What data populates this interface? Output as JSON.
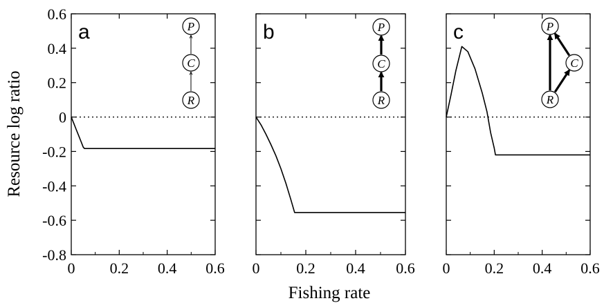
{
  "figure": {
    "xlabel": "Fishing rate",
    "ylabel": "Resource log ratio"
  },
  "chart_data": [
    {
      "type": "line",
      "panel": "a",
      "xlim": [
        0,
        0.6
      ],
      "ylim": [
        -0.8,
        0.6
      ],
      "xticks": [
        "0",
        "0.2",
        "0.4",
        "0.6"
      ],
      "yticks": [
        "0.6",
        "0.4",
        "0.2",
        "0",
        "-0.2",
        "-0.4",
        "-0.6",
        "-0.8"
      ],
      "reference_line": {
        "y": 0,
        "style": "dotted"
      },
      "series": [
        {
          "x": [
            0,
            0.01,
            0.02,
            0.03,
            0.04,
            0.05,
            0.055,
            0.1,
            0.2,
            0.3,
            0.4,
            0.5,
            0.6
          ],
          "y": [
            0,
            -0.035,
            -0.07,
            -0.105,
            -0.14,
            -0.175,
            -0.183,
            -0.183,
            -0.183,
            -0.183,
            -0.183,
            -0.183,
            -0.183
          ]
        }
      ],
      "diagram": {
        "nodes": [
          "P",
          "C",
          "R"
        ],
        "links": [
          {
            "from": "R",
            "to": "C",
            "weight": "thin"
          },
          {
            "from": "C",
            "to": "P",
            "weight": "thin"
          }
        ]
      }
    },
    {
      "type": "line",
      "panel": "b",
      "xlim": [
        0,
        0.6
      ],
      "ylim": [
        -0.8,
        0.6
      ],
      "xticks": [
        "0",
        "0.2",
        "0.4",
        "0.6"
      ],
      "reference_line": {
        "y": 0,
        "style": "dotted"
      },
      "series": [
        {
          "x": [
            0,
            0.02,
            0.04,
            0.06,
            0.08,
            0.1,
            0.12,
            0.14,
            0.155,
            0.2,
            0.3,
            0.4,
            0.5,
            0.6
          ],
          "y": [
            0,
            -0.045,
            -0.1,
            -0.16,
            -0.225,
            -0.3,
            -0.385,
            -0.48,
            -0.555,
            -0.555,
            -0.555,
            -0.555,
            -0.555,
            -0.555
          ]
        }
      ],
      "diagram": {
        "nodes": [
          "P",
          "C",
          "R"
        ],
        "links": [
          {
            "from": "R",
            "to": "C",
            "weight": "thick"
          },
          {
            "from": "C",
            "to": "P",
            "weight": "thick"
          }
        ]
      }
    },
    {
      "type": "line",
      "panel": "c",
      "xlim": [
        0,
        0.6
      ],
      "ylim": [
        -0.8,
        0.6
      ],
      "xticks": [
        "0",
        "0.2",
        "0.4",
        "0.6"
      ],
      "reference_line": {
        "y": 0,
        "style": "dotted"
      },
      "series": [
        {
          "x": [
            0,
            0.02,
            0.04,
            0.065,
            0.09,
            0.12,
            0.15,
            0.17,
            0.185,
            0.2,
            0.205,
            0.3,
            0.4,
            0.5,
            0.6
          ],
          "y": [
            0,
            0.13,
            0.27,
            0.41,
            0.38,
            0.28,
            0.14,
            0.03,
            -0.09,
            -0.18,
            -0.22,
            -0.22,
            -0.22,
            -0.22,
            -0.22
          ]
        }
      ],
      "diagram": {
        "nodes": [
          "P",
          "C",
          "R"
        ],
        "links": [
          {
            "from": "R",
            "to": "P",
            "weight": "thick"
          },
          {
            "from": "R",
            "to": "C",
            "weight": "thick"
          },
          {
            "from": "C",
            "to": "P",
            "weight": "thick"
          }
        ]
      }
    }
  ]
}
